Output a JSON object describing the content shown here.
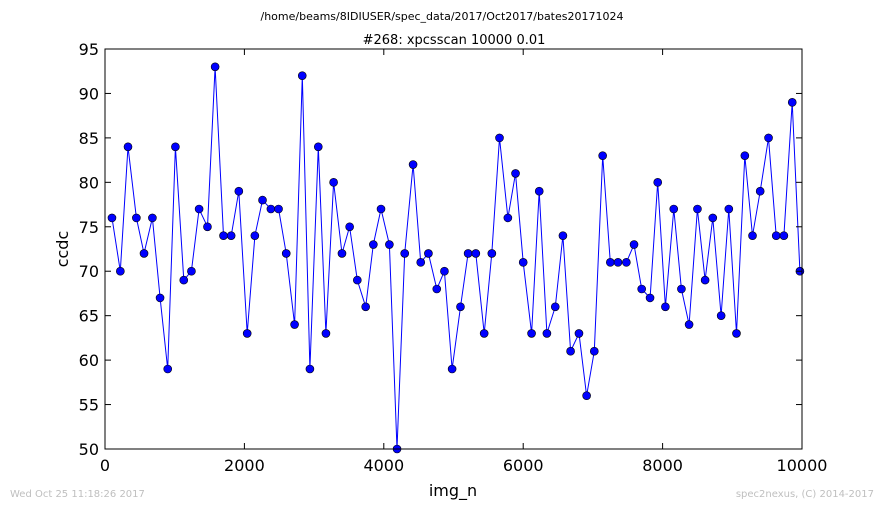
{
  "header": {
    "path": "/home/beams/8IDIUSER/spec_data/2017/Oct2017/bates20171024"
  },
  "footer": {
    "timestamp": "Wed Oct 25 11:18:26 2017",
    "credit": "spec2nexus, (C) 2014-2017"
  },
  "chart_data": {
    "type": "line",
    "title": "#268: xpcsscan 10000 0.01",
    "xlabel": "img_n",
    "ylabel": "ccdc",
    "xlim": [
      0,
      10000
    ],
    "ylim": [
      50,
      95
    ],
    "xticks": [
      0,
      2000,
      4000,
      6000,
      8000,
      10000
    ],
    "yticks": [
      50,
      55,
      60,
      65,
      70,
      75,
      80,
      85,
      90,
      95
    ],
    "marker": "circle",
    "color": "#0000ff",
    "grid": false,
    "series": [
      {
        "x": [
          100,
          220,
          330,
          450,
          560,
          680,
          790,
          900,
          1010,
          1130,
          1240,
          1350,
          1470,
          1580,
          1700,
          1810,
          1920,
          2040,
          2150,
          2260,
          2380,
          2490,
          2600,
          2720,
          2830,
          2940,
          3060,
          3170,
          3280,
          3400,
          3510,
          3620,
          3740,
          3850,
          3960,
          4080,
          4190,
          4300,
          4420,
          4530,
          4640,
          4760,
          4870,
          4980,
          5100,
          5210,
          5320,
          5440,
          5550,
          5660,
          5780,
          5890,
          6000,
          6120,
          6230,
          6340,
          6460,
          6570,
          6680,
          6800,
          6910,
          7020,
          7140,
          7250,
          7360,
          7480,
          7590,
          7700,
          7820,
          7930,
          8040,
          8160,
          8270,
          8380,
          8500,
          8610,
          8720,
          8840,
          8950,
          9060,
          9180,
          9290,
          9400,
          9520,
          9630,
          9740,
          9860,
          9970
        ],
        "y": [
          76,
          70,
          84,
          76,
          72,
          76,
          67,
          59,
          84,
          69,
          70,
          77,
          75,
          93,
          74,
          74,
          79,
          63,
          74,
          78,
          77,
          77,
          72,
          64,
          92,
          59,
          84,
          63,
          80,
          72,
          75,
          69,
          66,
          73,
          77,
          73,
          50,
          72,
          82,
          71,
          72,
          68,
          70,
          59,
          66,
          72,
          72,
          63,
          72,
          85,
          76,
          81,
          71,
          63,
          79,
          63,
          66,
          74,
          61,
          63,
          56,
          61,
          83,
          71,
          71,
          71,
          73,
          68,
          67,
          80,
          66,
          77,
          68,
          64,
          77,
          69,
          76,
          65,
          77,
          63,
          83,
          74,
          79,
          85,
          74,
          74,
          89,
          70
        ]
      }
    ]
  }
}
